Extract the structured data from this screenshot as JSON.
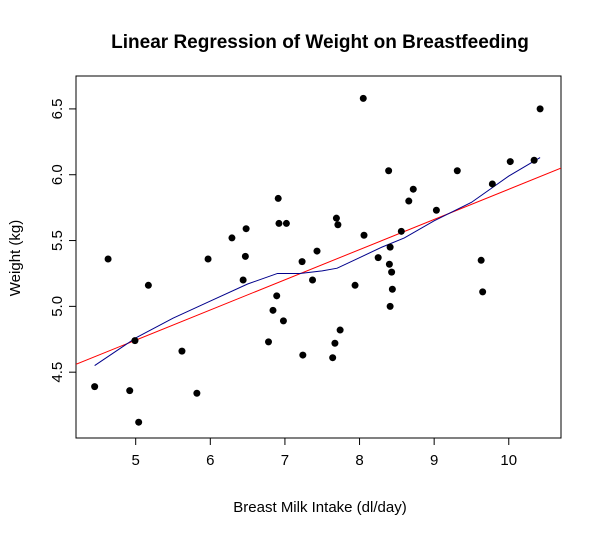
{
  "chart_data": {
    "type": "scatter",
    "title": "Linear Regression of Weight on Breastfeeding",
    "xlabel": "Breast Milk Intake (dl/day)",
    "ylabel": "Weight (kg)",
    "xlim": [
      4.2,
      10.7
    ],
    "ylim": [
      4.0,
      6.75
    ],
    "xticks": [
      5,
      6,
      7,
      8,
      9,
      10
    ],
    "yticks": [
      4.5,
      5.0,
      5.5,
      6.0,
      6.5
    ],
    "xtick_labels": [
      "5",
      "6",
      "7",
      "8",
      "9",
      "10"
    ],
    "ytick_labels": [
      "4.5",
      "5.0",
      "5.5",
      "6.0",
      "6.5"
    ],
    "grid": false,
    "points": [
      {
        "x": 4.45,
        "y": 4.39
      },
      {
        "x": 4.63,
        "y": 5.36
      },
      {
        "x": 4.92,
        "y": 4.36
      },
      {
        "x": 4.99,
        "y": 4.74
      },
      {
        "x": 5.04,
        "y": 4.12
      },
      {
        "x": 5.17,
        "y": 5.16
      },
      {
        "x": 5.62,
        "y": 4.66
      },
      {
        "x": 5.82,
        "y": 4.34
      },
      {
        "x": 5.97,
        "y": 5.36
      },
      {
        "x": 6.29,
        "y": 5.52
      },
      {
        "x": 6.44,
        "y": 5.2
      },
      {
        "x": 6.47,
        "y": 5.38
      },
      {
        "x": 6.48,
        "y": 5.59
      },
      {
        "x": 6.78,
        "y": 4.73
      },
      {
        "x": 6.84,
        "y": 4.97
      },
      {
        "x": 6.89,
        "y": 5.08
      },
      {
        "x": 6.91,
        "y": 5.82
      },
      {
        "x": 6.92,
        "y": 5.63
      },
      {
        "x": 6.98,
        "y": 4.89
      },
      {
        "x": 7.02,
        "y": 5.63
      },
      {
        "x": 7.23,
        "y": 5.34
      },
      {
        "x": 7.24,
        "y": 4.63
      },
      {
        "x": 7.37,
        "y": 5.2
      },
      {
        "x": 7.43,
        "y": 5.42
      },
      {
        "x": 7.64,
        "y": 4.61
      },
      {
        "x": 7.67,
        "y": 4.72
      },
      {
        "x": 7.69,
        "y": 5.67
      },
      {
        "x": 7.71,
        "y": 5.62
      },
      {
        "x": 7.74,
        "y": 4.82
      },
      {
        "x": 7.94,
        "y": 5.16
      },
      {
        "x": 8.05,
        "y": 6.58
      },
      {
        "x": 8.06,
        "y": 5.54
      },
      {
        "x": 8.25,
        "y": 5.37
      },
      {
        "x": 8.39,
        "y": 6.03
      },
      {
        "x": 8.4,
        "y": 5.32
      },
      {
        "x": 8.41,
        "y": 5.45
      },
      {
        "x": 8.41,
        "y": 5.0
      },
      {
        "x": 8.43,
        "y": 5.26
      },
      {
        "x": 8.44,
        "y": 5.13
      },
      {
        "x": 8.56,
        "y": 5.57
      },
      {
        "x": 8.66,
        "y": 5.8
      },
      {
        "x": 8.72,
        "y": 5.89
      },
      {
        "x": 9.03,
        "y": 5.73
      },
      {
        "x": 9.31,
        "y": 6.03
      },
      {
        "x": 9.63,
        "y": 5.35
      },
      {
        "x": 9.65,
        "y": 5.11
      },
      {
        "x": 9.78,
        "y": 5.93
      },
      {
        "x": 10.02,
        "y": 6.1
      },
      {
        "x": 10.34,
        "y": 6.11
      },
      {
        "x": 10.42,
        "y": 6.5
      }
    ],
    "series": [
      {
        "type": "line",
        "color": "#ff0000",
        "x": [
          4.2,
          10.7
        ],
        "values": [
          4.56,
          6.05
        ]
      },
      {
        "type": "line",
        "color": "#00008b",
        "x": [
          4.45,
          5.0,
          5.5,
          6.0,
          6.5,
          6.9,
          7.0,
          7.2,
          7.5,
          7.7,
          8.0,
          8.3,
          8.6,
          9.0,
          9.5,
          10.0,
          10.42
        ],
        "values": [
          4.55,
          4.76,
          4.91,
          5.04,
          5.17,
          5.25,
          5.25,
          5.25,
          5.27,
          5.29,
          5.37,
          5.45,
          5.52,
          5.65,
          5.79,
          5.99,
          6.13
        ]
      }
    ]
  }
}
